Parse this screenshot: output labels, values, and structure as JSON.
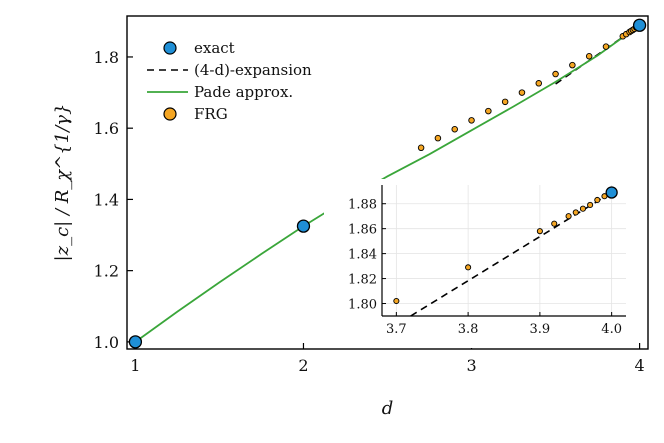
{
  "chart_data": [
    {
      "type": "line",
      "panel": "main",
      "xlabel": "d",
      "ylabel": "|z_c| / R_χ^{1/γ}",
      "xlim": [
        0.95,
        4.05
      ],
      "ylim": [
        0.98,
        1.915
      ],
      "xticks": [
        1,
        2,
        3,
        4
      ],
      "xtick_labels": [
        "1",
        "2",
        "3",
        "4"
      ],
      "yticks": [
        1.0,
        1.2,
        1.4,
        1.6,
        1.8
      ],
      "ytick_labels": [
        "1.0",
        "1.2",
        "1.4",
        "1.6",
        "1.8"
      ],
      "grid": false,
      "legend": "top-left",
      "series": [
        {
          "name": "exact",
          "kind": "scatter",
          "color": "#1f8fd6",
          "x": [
            1,
            2,
            4
          ],
          "y": [
            1.0,
            1.325,
            1.889
          ]
        },
        {
          "name": "(4-d)-expansion",
          "kind": "line",
          "dash": true,
          "color": "#000000",
          "x": [
            3.5,
            4.0
          ],
          "y": [
            1.724,
            1.889
          ]
        },
        {
          "name": "Pade approx.",
          "kind": "line",
          "color": "#3aa63a",
          "x": [
            1.0,
            1.25,
            1.5,
            1.75,
            2.0,
            2.25,
            2.5,
            2.75,
            3.0,
            3.25,
            3.5,
            3.75,
            4.0
          ],
          "y": [
            1.0,
            1.085,
            1.167,
            1.247,
            1.325,
            1.398,
            1.465,
            1.527,
            1.594,
            1.661,
            1.73,
            1.804,
            1.889
          ]
        },
        {
          "name": "FRG",
          "kind": "scatter",
          "color": "#f5a623",
          "x": [
            2.7,
            2.8,
            2.9,
            3.0,
            3.1,
            3.2,
            3.3,
            3.4,
            3.5,
            3.6,
            3.7,
            3.8,
            3.9,
            3.92,
            3.94,
            3.95,
            3.96,
            3.97,
            3.98,
            3.99
          ],
          "y": [
            1.545,
            1.572,
            1.597,
            1.622,
            1.648,
            1.674,
            1.7,
            1.726,
            1.752,
            1.777,
            1.802,
            1.829,
            1.858,
            1.864,
            1.87,
            1.873,
            1.876,
            1.879,
            1.883,
            1.886
          ]
        }
      ]
    },
    {
      "type": "line",
      "panel": "inset",
      "xlim": [
        3.68,
        4.02
      ],
      "ylim": [
        1.79,
        1.895
      ],
      "xticks": [
        3.7,
        3.8,
        3.9,
        4.0
      ],
      "xtick_labels": [
        "3.7",
        "3.8",
        "3.9",
        "4.0"
      ],
      "yticks": [
        1.8,
        1.82,
        1.84,
        1.86,
        1.88
      ],
      "ytick_labels": [
        "1.80",
        "1.82",
        "1.84",
        "1.86",
        "1.88"
      ],
      "grid": true,
      "series": [
        {
          "name": "exact",
          "kind": "scatter",
          "color": "#1f8fd6",
          "x": [
            4.0
          ],
          "y": [
            1.889
          ]
        },
        {
          "name": "(4-d)-expansion",
          "kind": "line",
          "dash": true,
          "color": "#000000",
          "x": [
            3.72,
            4.0
          ],
          "y": [
            1.79,
            1.889
          ]
        },
        {
          "name": "FRG",
          "kind": "scatter",
          "color": "#f5a623",
          "x": [
            3.7,
            3.8,
            3.9,
            3.92,
            3.94,
            3.95,
            3.96,
            3.97,
            3.98,
            3.99
          ],
          "y": [
            1.802,
            1.829,
            1.858,
            1.864,
            1.87,
            1.873,
            1.876,
            1.879,
            1.883,
            1.886
          ]
        }
      ]
    }
  ]
}
